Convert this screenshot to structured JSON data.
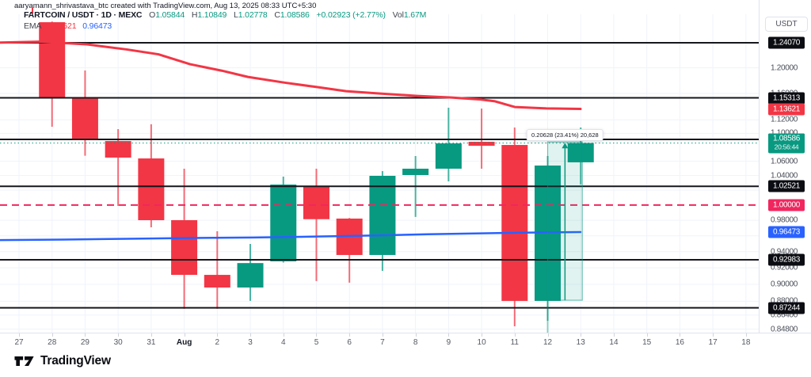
{
  "attribution": "aaryamann_shrivastava_btc created with TradingView.com, Aug 13, 2025 08:33 UTC+5:30",
  "logo_text": "TradingView",
  "unit_button": "USDT",
  "legend": {
    "title": "FARTCOIN / USDT · 1D · MEXC",
    "ohlc": [
      {
        "k": "O",
        "v": "1.05844"
      },
      {
        "k": "H",
        "v": "1.10849"
      },
      {
        "k": "L",
        "v": "1.02778"
      },
      {
        "k": "C",
        "v": "1.08586"
      }
    ],
    "change": "+0.02923 (+2.77%)",
    "vol_label": "Vol",
    "vol_value": "1.67M",
    "indicator": {
      "name": "EMA",
      "value_red": "1.13621",
      "value_blue": "0.96473"
    }
  },
  "colors": {
    "up": "#089981",
    "down": "#f23645",
    "ema_red": "#f23645",
    "ema_blue": "#2962ff",
    "unit_line": "#f1265f",
    "level_line": "#16171d",
    "label_dark_bg": "#0c0d13",
    "grid": "#f0f3fa",
    "axis_text": "#4a4e59",
    "measure_fill": "rgba(8,153,129,0.12)",
    "measure_edge": "rgba(8,153,129,0.55)"
  },
  "chart_data": {
    "type": "candlestick",
    "scale": "log",
    "x_categories": [
      "27",
      "28",
      "29",
      "30",
      "31",
      "Aug",
      "2",
      "3",
      "4",
      "5",
      "6",
      "7",
      "8",
      "9",
      "10",
      "11",
      "12",
      "13",
      "14",
      "15",
      "16",
      "17",
      "18"
    ],
    "x_bold": "Aug",
    "candles": [
      {
        "day": "28",
        "i": 1,
        "o": 1.275,
        "h": 1.2762,
        "l": 1.1097,
        "c": 1.1537
      },
      {
        "day": "29",
        "i": 2,
        "o": 1.1537,
        "h": 1.1958,
        "l": 1.0677,
        "c": 1.0923
      },
      {
        "day": "30",
        "i": 3,
        "o": 1.0888,
        "h": 1.1062,
        "l": 0.9988,
        "c": 1.0651
      },
      {
        "day": "31",
        "i": 4,
        "o": 1.0639,
        "h": 1.1133,
        "l": 0.9709,
        "c": 0.9801
      },
      {
        "day": "Aug",
        "i": 5,
        "o": 0.9801,
        "h": 1.0495,
        "l": 0.8712,
        "c": 0.9114
      },
      {
        "day": "2",
        "i": 6,
        "o": 0.9114,
        "h": 0.9658,
        "l": 0.8712,
        "c": 0.8962
      },
      {
        "day": "3",
        "i": 7,
        "o": 0.8962,
        "h": 0.9496,
        "l": 0.8804,
        "c": 0.9258
      },
      {
        "day": "4",
        "i": 8,
        "o": 0.9279,
        "h": 1.0385,
        "l": 0.9265,
        "c": 1.0276
      },
      {
        "day": "5",
        "i": 9,
        "o": 1.0255,
        "h": 1.0495,
        "l": 0.9039,
        "c": 0.9814
      },
      {
        "day": "6",
        "i": 10,
        "o": 0.9822,
        "h": 0.983,
        "l": 0.902,
        "c": 0.9358
      },
      {
        "day": "7",
        "i": 11,
        "o": 0.9358,
        "h": 1.0462,
        "l": 0.9163,
        "c": 1.0396
      },
      {
        "day": "8",
        "i": 12,
        "o": 1.0407,
        "h": 1.0673,
        "l": 0.9843,
        "c": 1.0495
      },
      {
        "day": "9",
        "i": 13,
        "o": 1.0495,
        "h": 1.1381,
        "l": 1.032,
        "c": 1.0854
      },
      {
        "day": "10",
        "i": 14,
        "o": 1.0877,
        "h": 1.1368,
        "l": 1.0495,
        "c": 1.082
      },
      {
        "day": "11",
        "i": 15,
        "o": 1.0831,
        "h": 1.1085,
        "l": 0.8512,
        "c": 0.8804
      },
      {
        "day": "12",
        "i": 16,
        "o": 0.8804,
        "h": 1.0673,
        "l": 0.8575,
        "c": 1.0539
      },
      {
        "day": "13",
        "i": 17,
        "o": 1.05844,
        "h": 1.10849,
        "l": 1.02778,
        "c": 1.08586
      }
    ],
    "levels": [
      {
        "price": 1.2407,
        "label": "1.24070"
      },
      {
        "price": 1.15313,
        "label": "1.15313"
      },
      {
        "price": 1.09118,
        "label": "1.09118"
      },
      {
        "price": 1.02521,
        "label": "1.02521"
      },
      {
        "price": 0.92983,
        "label": "0.92983"
      },
      {
        "price": 0.87244,
        "label": "0.87244"
      }
    ],
    "current_price": {
      "price": 1.08586,
      "label": "1.08586",
      "countdown": "20:56:44"
    },
    "unit_line": {
      "price": 1.0,
      "label": "1.00000"
    },
    "ema_red": {
      "name": "EMA",
      "last_value": "1.13621",
      "points": [
        [
          0,
          1.241
        ],
        [
          50,
          1.2425
        ],
        [
          110,
          1.238
        ],
        [
          160,
          1.2297
        ],
        [
          200,
          1.2218
        ],
        [
          240,
          1.2058
        ],
        [
          280,
          1.1955
        ],
        [
          313,
          1.1856
        ],
        [
          360,
          1.1765
        ],
        [
          400,
          1.1698
        ],
        [
          437,
          1.1634
        ],
        [
          480,
          1.1597
        ],
        [
          527,
          1.156
        ],
        [
          570,
          1.1536
        ],
        [
          607,
          1.1506
        ],
        [
          625,
          1.1478
        ],
        [
          650,
          1.1392
        ],
        [
          690,
          1.1371
        ],
        [
          733,
          1.13621
        ]
      ]
    },
    "ema_blue": {
      "name": "EMA",
      "last_value": "0.96473",
      "points": [
        [
          0,
          0.9545
        ],
        [
          80,
          0.9552
        ],
        [
          160,
          0.9562
        ],
        [
          240,
          0.9572
        ],
        [
          320,
          0.9578
        ],
        [
          400,
          0.959
        ],
        [
          470,
          0.9603
        ],
        [
          540,
          0.962
        ],
        [
          600,
          0.963
        ],
        [
          660,
          0.964
        ],
        [
          733,
          0.96473
        ]
      ]
    },
    "y_ticks": [
      {
        "price": 1.2,
        "label": "1.20000"
      },
      {
        "price": 1.16,
        "label": "1.16000"
      },
      {
        "price": 1.12,
        "label": "1.12000"
      },
      {
        "price": 1.1,
        "label": "1.10000"
      },
      {
        "price": 1.06,
        "label": "1.06000"
      },
      {
        "price": 1.04,
        "label": "1.04000"
      },
      {
        "price": 1.02,
        "label": "1.02000"
      },
      {
        "price": 0.98,
        "label": "0.98000"
      },
      {
        "price": 0.96,
        "label": "0.96000"
      },
      {
        "price": 0.94,
        "label": "0.94000"
      },
      {
        "price": 0.92,
        "label": "0.92000"
      },
      {
        "price": 0.9,
        "label": "0.90000"
      },
      {
        "price": 0.88,
        "label": "0.88000"
      },
      {
        "price": 0.864,
        "label": "0.86400"
      },
      {
        "price": 0.848,
        "label": "0.84800"
      }
    ],
    "measure": {
      "from_day": "12",
      "from_i": 16,
      "to_day": "13",
      "to_i": 17,
      "price_low": 0.8812,
      "price_high": 1.0875,
      "label": "0.20628 (23.41%) 20,628"
    }
  }
}
